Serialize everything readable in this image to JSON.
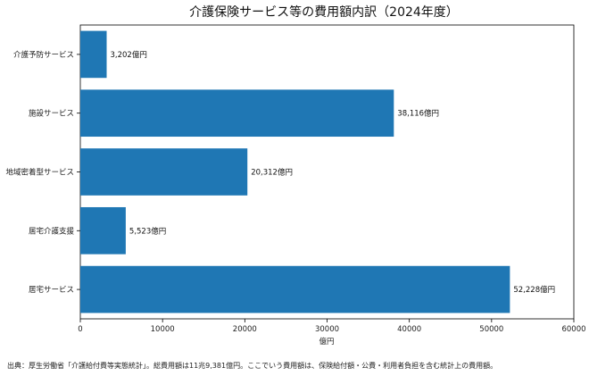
{
  "chart_data": {
    "type": "bar",
    "orientation": "horizontal",
    "title": "介護保険サービス等の費用額内訳（2024年度）",
    "categories": [
      "介護予防サービス",
      "施設サービス",
      "地域密着型サービス",
      "居宅介護支援",
      "居宅サービス"
    ],
    "values": [
      3202,
      38116,
      20312,
      5523,
      52228
    ],
    "data_labels": [
      "3,202億円",
      "38,116億円",
      "20,312億円",
      "5,523億円",
      "52,228億円"
    ],
    "xlabel": "億円",
    "ylabel": "",
    "xlim": [
      0,
      60000
    ],
    "xticks": [
      0,
      10000,
      20000,
      30000,
      40000,
      50000,
      60000
    ],
    "xtick_labels": [
      "0",
      "10000",
      "20000",
      "30000",
      "40000",
      "50000",
      "60000"
    ],
    "bar_color": "#1f77b4",
    "grid": false,
    "legend": "none"
  },
  "source_note": "出典：厚生労働省「介護給付費等実態統計」。総費用額は11兆9,381億円。ここでいう費用額は、保険給付額・公費・利用者負担を含む統計上の費用額。"
}
